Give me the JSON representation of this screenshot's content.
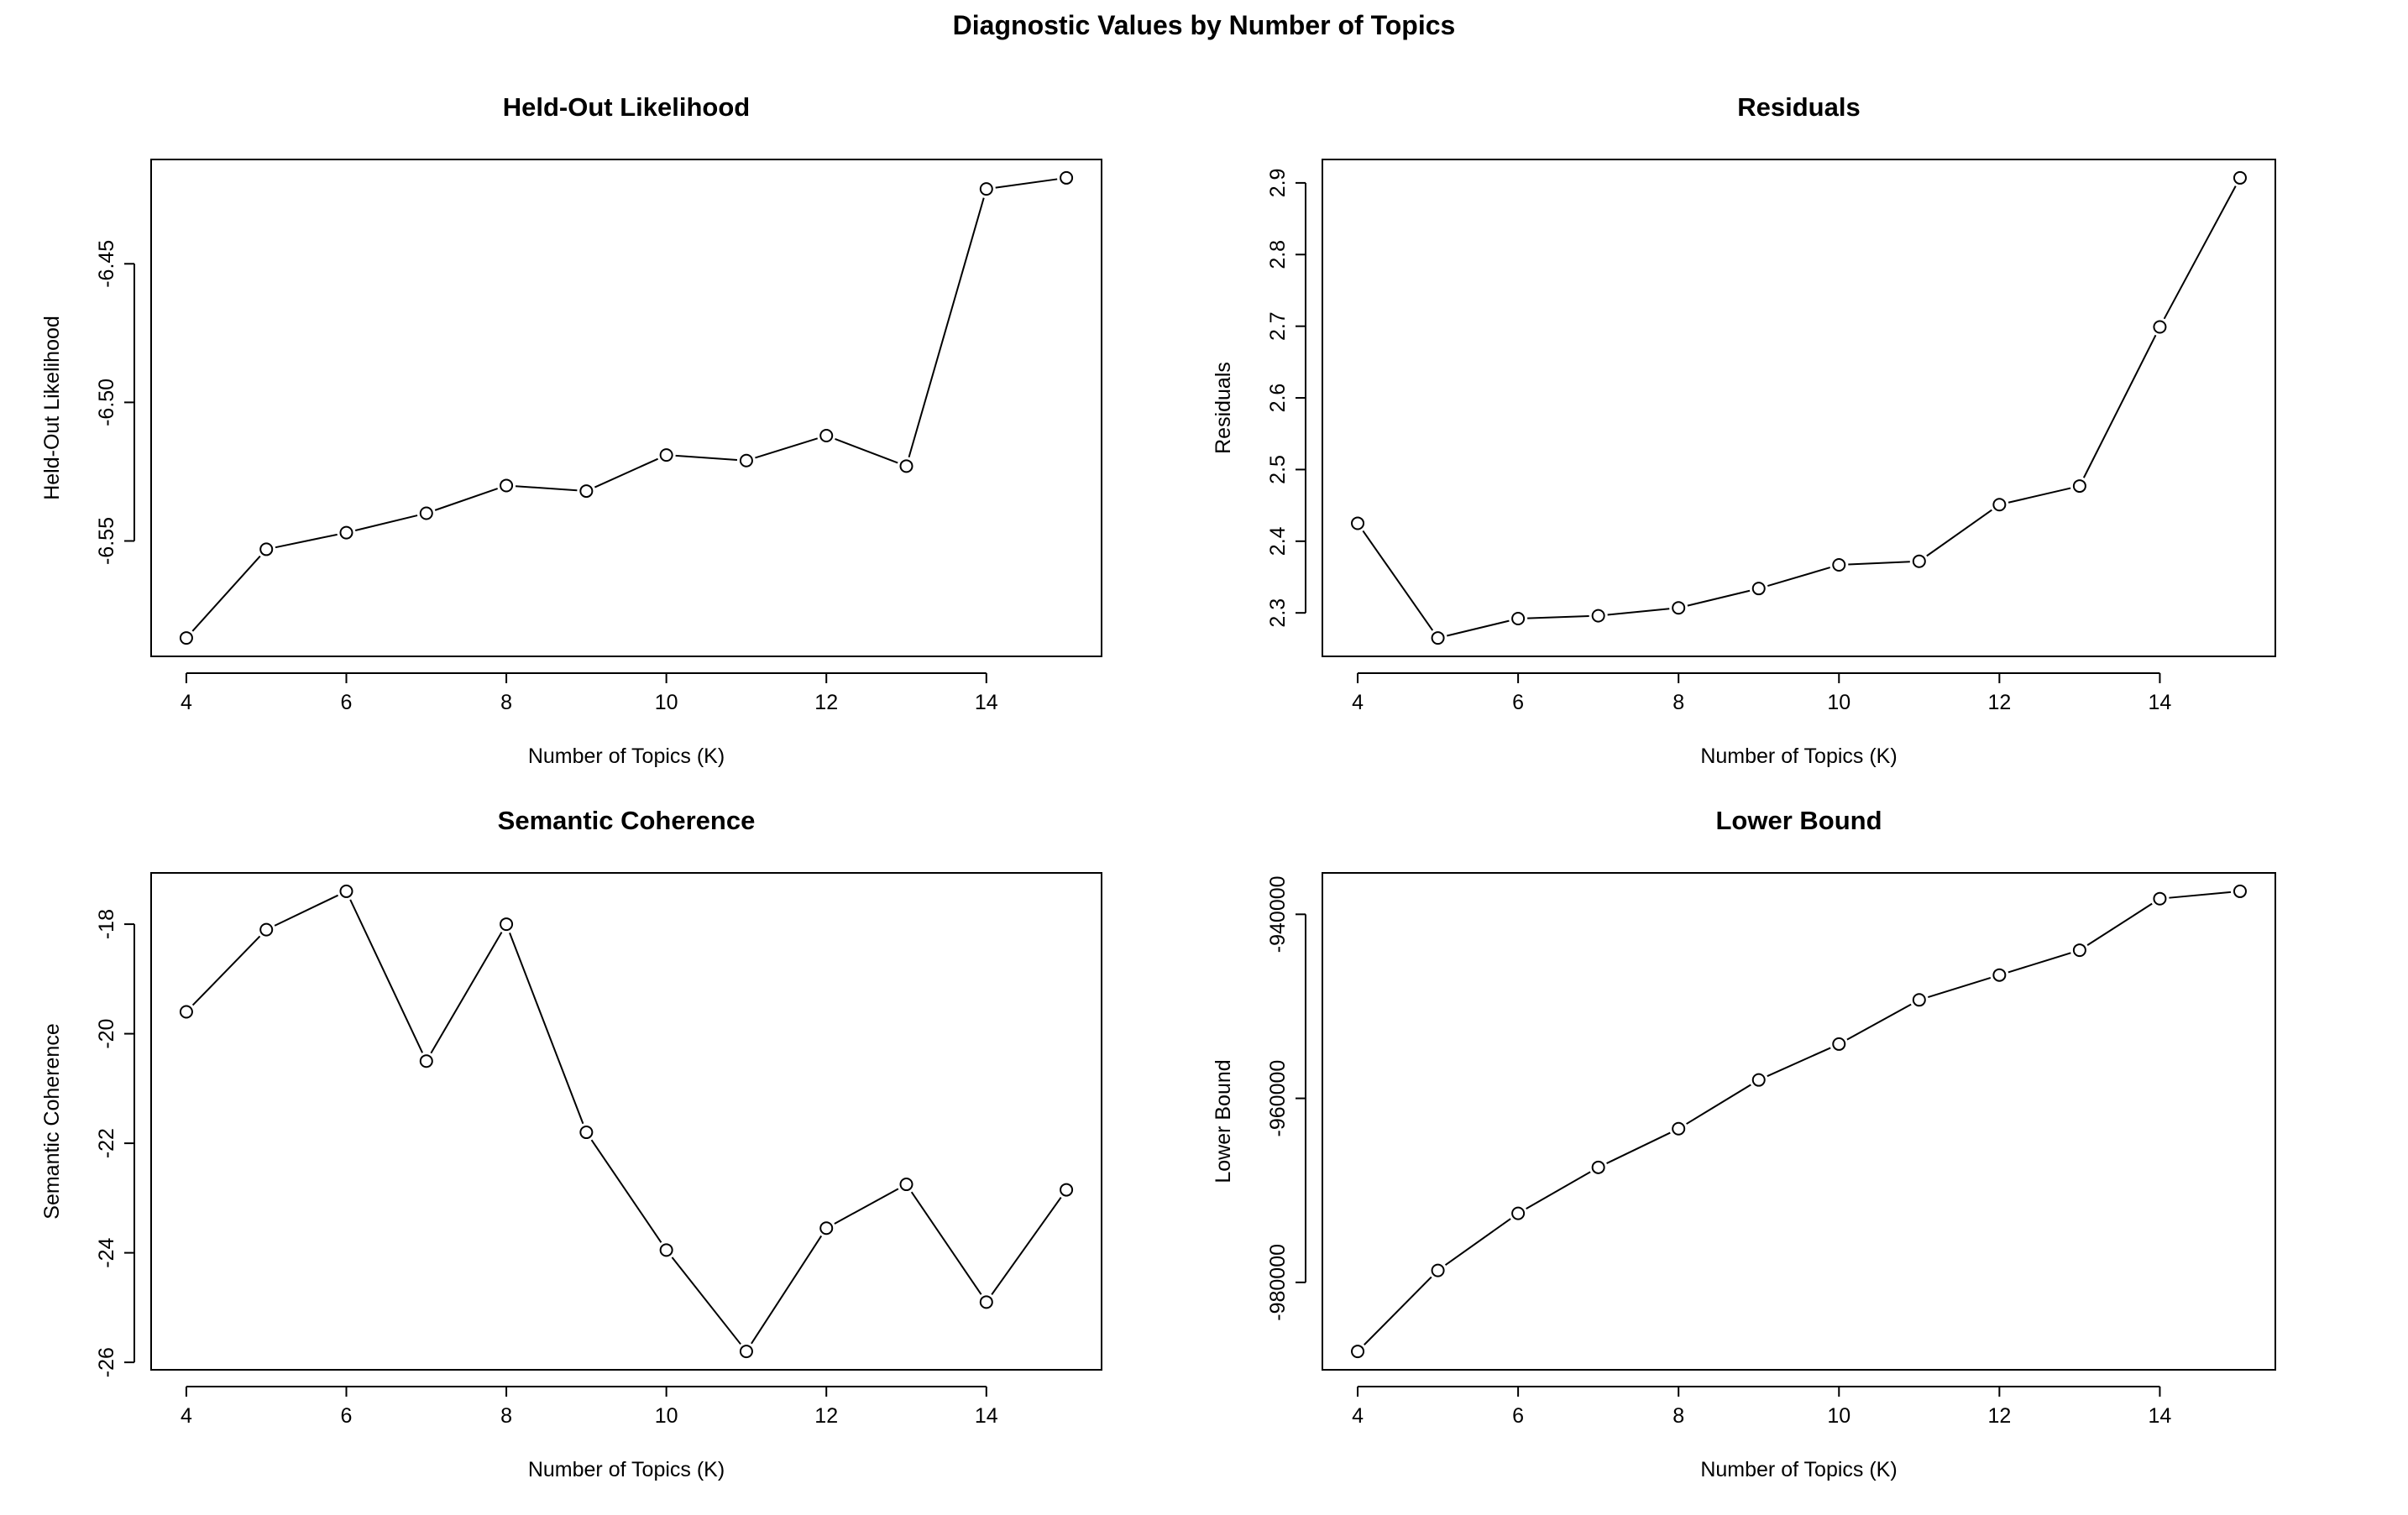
{
  "figure": {
    "title": "Diagnostic Values by Number of Topics"
  },
  "chart_data": [
    {
      "type": "line",
      "title": "Held-Out Likelihood",
      "xlabel": "Number of Topics (K)",
      "ylabel": "Held-Out Likelihood",
      "x": [
        4,
        5,
        6,
        7,
        8,
        9,
        10,
        11,
        12,
        13,
        14,
        15
      ],
      "values": [
        -6.585,
        -6.553,
        -6.547,
        -6.54,
        -6.53,
        -6.532,
        -6.519,
        -6.521,
        -6.512,
        -6.523,
        -6.423,
        -6.419
      ],
      "xticks": [
        "4",
        "6",
        "8",
        "10",
        "12",
        "14"
      ],
      "yticks": [
        "-6.45",
        "-6.50",
        "-6.55"
      ],
      "xlim": [
        4,
        15
      ],
      "ylim": [
        -6.585,
        -6.419
      ],
      "markers": "open-circle",
      "grid": false
    },
    {
      "type": "line",
      "title": "Residuals",
      "xlabel": "Number of Topics (K)",
      "ylabel": "Residuals",
      "x": [
        4,
        5,
        6,
        7,
        8,
        9,
        10,
        11,
        12,
        13,
        14,
        15
      ],
      "values": [
        2.425,
        2.265,
        2.292,
        2.296,
        2.307,
        2.334,
        2.367,
        2.372,
        2.451,
        2.477,
        2.699,
        2.907
      ],
      "xticks": [
        "4",
        "6",
        "8",
        "10",
        "12",
        "14"
      ],
      "yticks": [
        "2.3",
        "2.4",
        "2.5",
        "2.6",
        "2.7",
        "2.8",
        "2.9"
      ],
      "xlim": [
        4,
        15
      ],
      "ylim": [
        2.265,
        2.907
      ],
      "markers": "open-circle",
      "grid": false
    },
    {
      "type": "line",
      "title": "Semantic Coherence",
      "xlabel": "Number of Topics (K)",
      "ylabel": "Semantic Coherence",
      "x": [
        4,
        5,
        6,
        7,
        8,
        9,
        10,
        11,
        12,
        13,
        14,
        15
      ],
      "values": [
        -19.6,
        -18.1,
        -17.4,
        -20.5,
        -18.0,
        -21.8,
        -23.95,
        -25.8,
        -23.55,
        -22.75,
        -24.9,
        -22.85
      ],
      "xticks": [
        "4",
        "6",
        "8",
        "10",
        "12",
        "14"
      ],
      "yticks": [
        "-18",
        "-20",
        "-22",
        "-24",
        "-26"
      ],
      "xlim": [
        4,
        15
      ],
      "ylim": [
        -25.8,
        -17.4
      ],
      "markers": "open-circle",
      "grid": false
    },
    {
      "type": "line",
      "title": "Lower Bound",
      "xlabel": "Number of Topics (K)",
      "ylabel": "Lower Bound",
      "x": [
        4,
        5,
        6,
        7,
        8,
        9,
        10,
        11,
        12,
        13,
        14,
        15
      ],
      "values": [
        -987500,
        -978700,
        -972500,
        -967500,
        -963300,
        -958000,
        -954100,
        -949300,
        -946600,
        -943900,
        -938300,
        -937500
      ],
      "xticks": [
        "4",
        "6",
        "8",
        "10",
        "12",
        "14"
      ],
      "yticks": [
        "-940000",
        "-960000",
        "-980000"
      ],
      "xlim": [
        4,
        15
      ],
      "ylim": [
        -987500,
        -937500
      ],
      "markers": "open-circle",
      "grid": false
    }
  ]
}
